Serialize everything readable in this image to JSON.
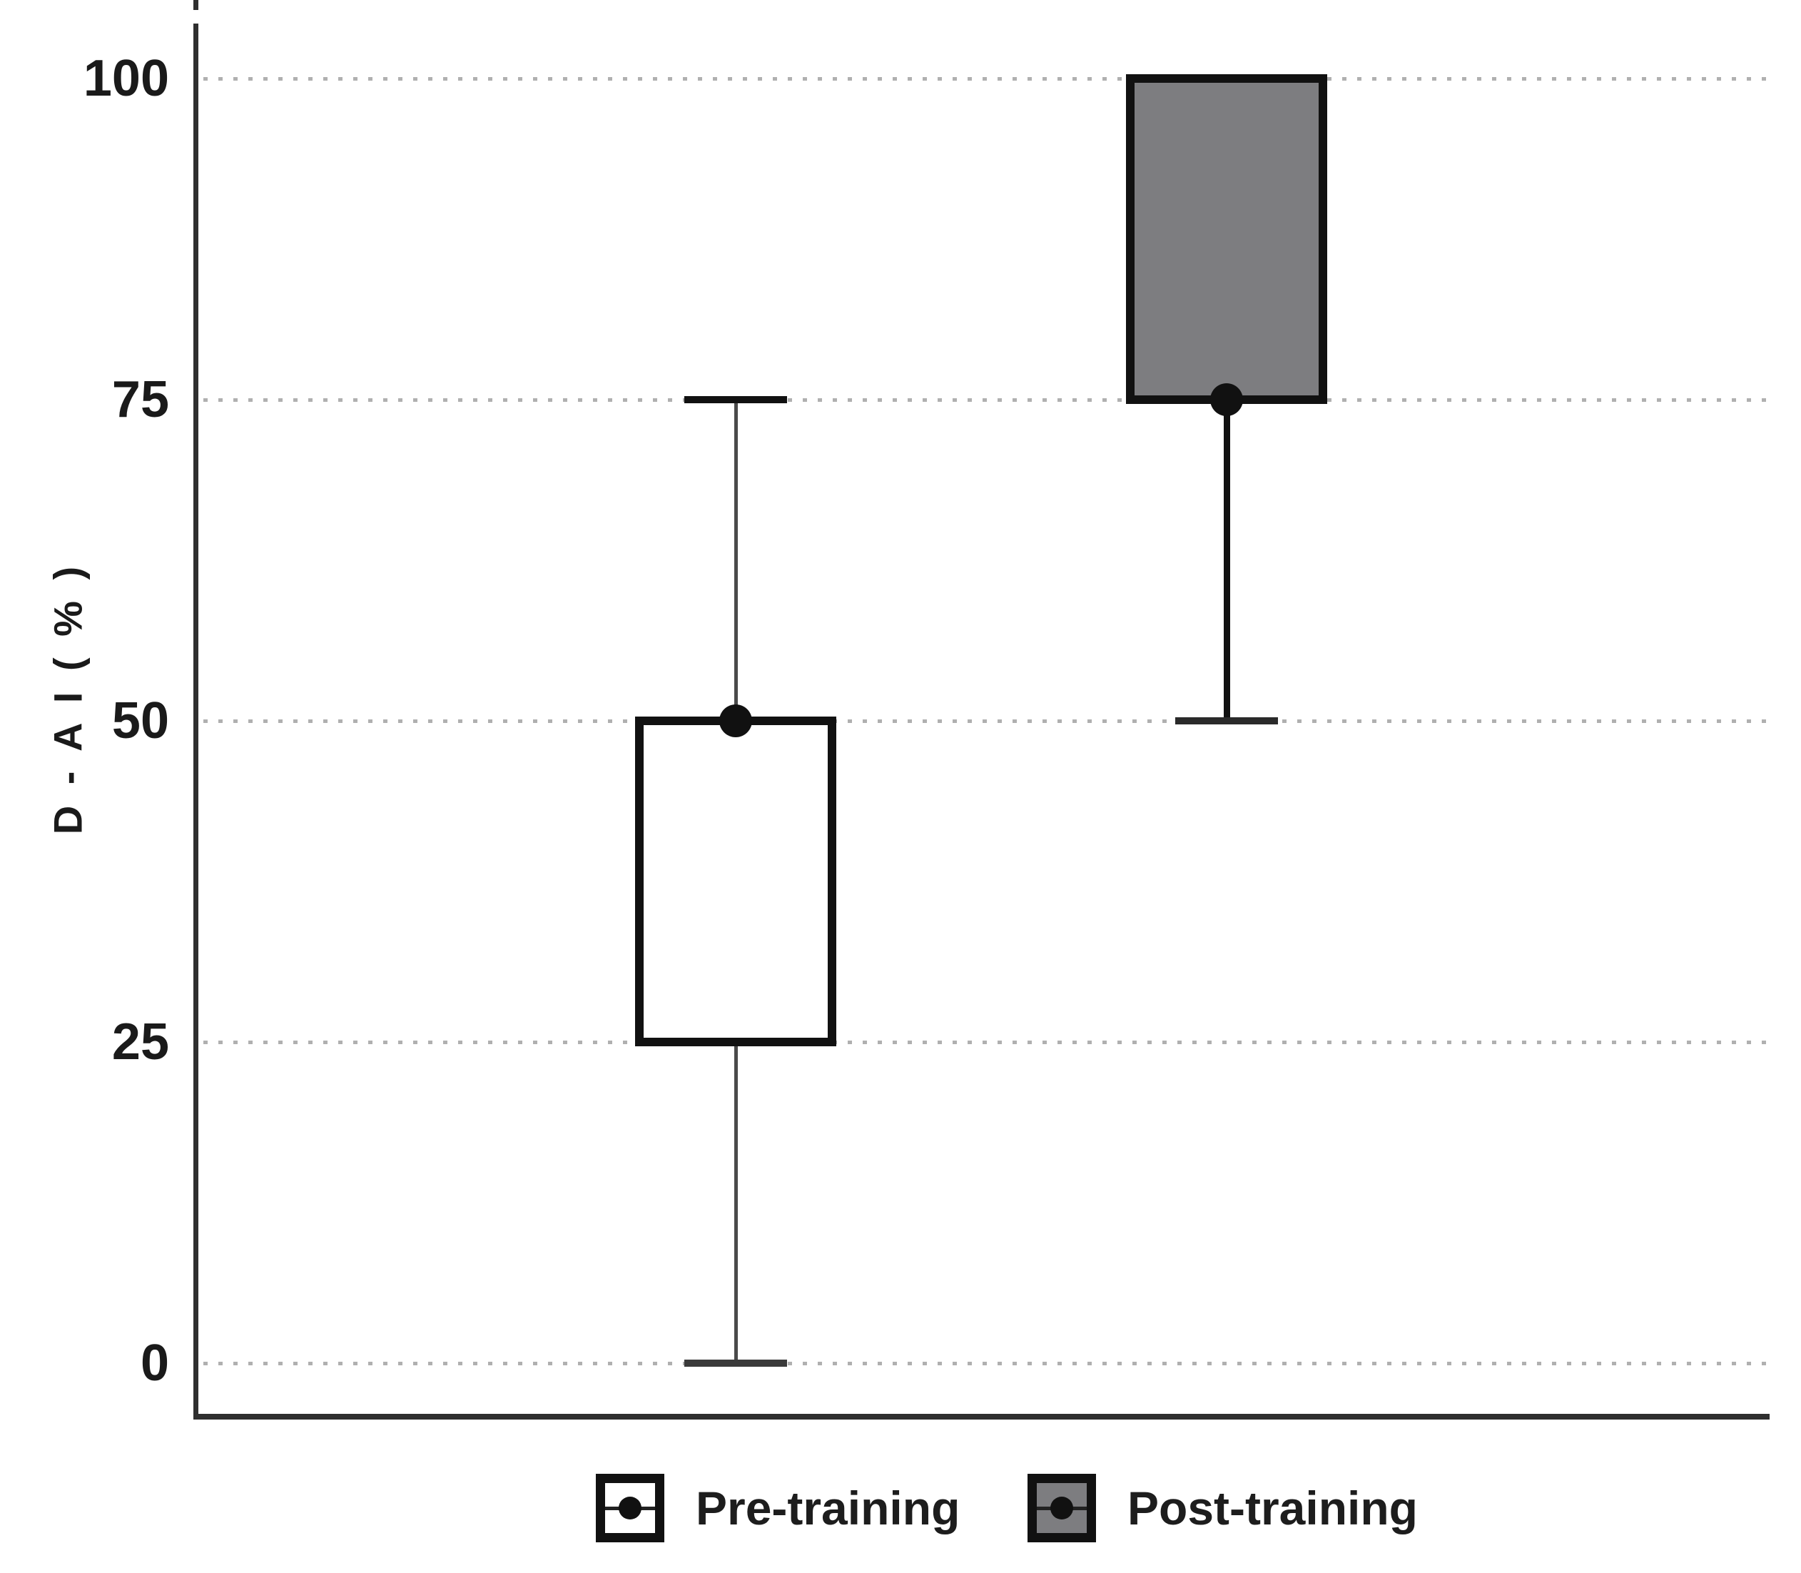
{
  "figure": {
    "background": "#ffffff",
    "text_color": "#1a1a1a",
    "axis_color": "#2f2f2f",
    "gridline_color": "#b0b0b0",
    "box_border_color": "#111111"
  },
  "chart_data": {
    "type": "box",
    "title": "",
    "xlabel": "",
    "ylabel": "D - A I ( % )",
    "ylim": [
      0,
      100
    ],
    "yticks": [
      0,
      25,
      50,
      75,
      100
    ],
    "grid": "horizontal dotted lines at each y tick",
    "legend_position": "bottom center",
    "series": [
      {
        "name": "Pre-training",
        "fill": "#ffffff",
        "q1": 25,
        "median": 50,
        "q3": 50,
        "whisker_low": 0,
        "whisker_high": 75
      },
      {
        "name": "Post-training",
        "fill": "#7d7d80",
        "q1": 75,
        "median": 75,
        "q3": 100,
        "whisker_low": 50,
        "whisker_high": 100
      }
    ]
  }
}
